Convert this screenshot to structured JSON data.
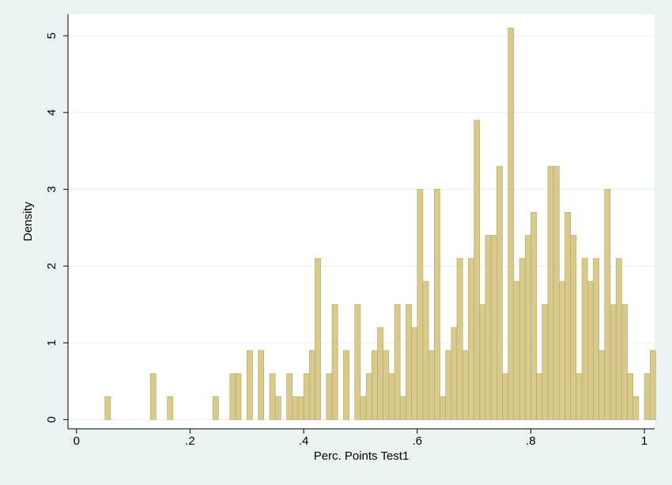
{
  "chart_data": {
    "type": "histogram",
    "x_label": "Perc. Points Test1",
    "y_label": "Density",
    "bins": [
      0.05,
      0.06,
      0.07,
      0.08,
      0.09,
      0.1,
      0.11,
      0.12,
      0.13,
      0.14,
      0.15,
      0.16,
      0.17,
      0.18,
      0.19,
      0.2,
      0.21,
      0.22,
      0.23,
      0.24,
      0.25,
      0.26,
      0.27,
      0.28,
      0.29,
      0.3,
      0.31,
      0.32,
      0.33,
      0.34,
      0.35,
      0.36,
      0.37,
      0.38,
      0.39,
      0.4,
      0.41,
      0.42,
      0.43,
      0.44,
      0.45,
      0.46,
      0.47,
      0.48,
      0.49,
      0.5,
      0.51,
      0.52,
      0.53,
      0.54,
      0.55,
      0.56,
      0.57,
      0.58,
      0.59,
      0.6,
      0.61,
      0.62,
      0.63,
      0.64,
      0.65,
      0.66,
      0.67,
      0.68,
      0.69,
      0.7,
      0.71,
      0.72,
      0.73,
      0.74,
      0.75,
      0.76,
      0.77,
      0.78,
      0.79,
      0.8,
      0.81,
      0.82,
      0.83,
      0.84,
      0.85,
      0.86,
      0.87,
      0.88,
      0.89,
      0.9,
      0.91,
      0.92,
      0.93,
      0.94,
      0.95,
      0.96,
      0.97,
      0.98,
      0.99,
      1.0,
      1.01,
      1.02
    ],
    "values": [
      0.3,
      0,
      0,
      0,
      0,
      0,
      0,
      0,
      0.6,
      0,
      0,
      0.3,
      0,
      0,
      0,
      0,
      0,
      0,
      0,
      0.3,
      0,
      0,
      0.6,
      0.6,
      0,
      0.9,
      0,
      0.9,
      0,
      0.6,
      0.3,
      0,
      0.6,
      0.3,
      0.3,
      0.6,
      0.9,
      2.1,
      0,
      0.6,
      1.5,
      0,
      0.9,
      0,
      1.5,
      0.3,
      0.6,
      0.9,
      1.2,
      0.9,
      0.6,
      1.5,
      0.3,
      1.5,
      1.2,
      3.0,
      1.8,
      0.9,
      3.0,
      0.3,
      0.9,
      1.2,
      2.1,
      0.9,
      2.1,
      3.9,
      1.5,
      2.4,
      2.4,
      3.3,
      0.6,
      5.1,
      1.8,
      2.1,
      2.4,
      2.7,
      0.6,
      1.5,
      3.3,
      3.3,
      1.8,
      2.7,
      2.4,
      0.6,
      2.1,
      1.8,
      2.1,
      0.9,
      3.0,
      1.5,
      2.1,
      1.5,
      0.6,
      0.3,
      0,
      0.6,
      0.9
    ],
    "color": "#d8ca8c",
    "edge_color": "#b4a561",
    "xlim": [
      -0.015,
      1.018
    ],
    "xticks": [
      0,
      {
        "value": 0.2,
        "label": ".2"
      },
      {
        "value": 0.4,
        "label": ".4"
      },
      {
        "value": 0.6,
        "label": ".6"
      },
      {
        "value": 0.8,
        "label": ".8"
      },
      1
    ],
    "ylim": [
      -0.12,
      5.28
    ],
    "yticks": [
      0,
      1,
      2,
      3,
      4,
      5
    ],
    "grid": true
  }
}
